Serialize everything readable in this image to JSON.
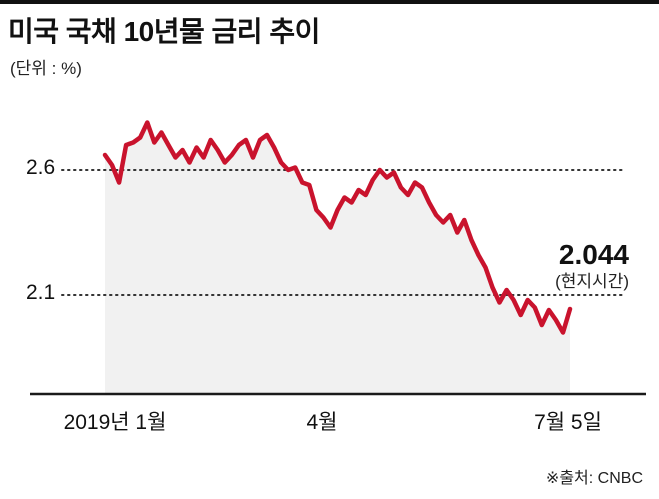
{
  "header": {
    "title": "미국 국채 10년물 금리 추이",
    "unit": "(단위 : %)"
  },
  "chart_data": {
    "type": "area",
    "title": "미국 국채 10년물 금리 추이",
    "ylabel": "%",
    "x_tick_labels": [
      "2019년 1월",
      "4월",
      "7월 5일"
    ],
    "y_ticks": [
      2.6,
      2.1
    ],
    "y_tick_labels": [
      "2.6",
      "2.1"
    ],
    "ylim": [
      1.75,
      2.85
    ],
    "x_range_note": "2019-01 to 2019-07-05, evenly spaced observations",
    "values": [
      2.66,
      2.62,
      2.55,
      2.7,
      2.71,
      2.73,
      2.79,
      2.71,
      2.75,
      2.7,
      2.65,
      2.68,
      2.63,
      2.69,
      2.65,
      2.72,
      2.68,
      2.63,
      2.66,
      2.7,
      2.72,
      2.65,
      2.72,
      2.74,
      2.69,
      2.63,
      2.6,
      2.61,
      2.55,
      2.54,
      2.44,
      2.41,
      2.37,
      2.44,
      2.49,
      2.47,
      2.52,
      2.5,
      2.56,
      2.6,
      2.57,
      2.59,
      2.53,
      2.5,
      2.55,
      2.53,
      2.47,
      2.42,
      2.39,
      2.42,
      2.35,
      2.4,
      2.32,
      2.26,
      2.21,
      2.13,
      2.07,
      2.12,
      2.08,
      2.02,
      2.08,
      2.05,
      1.98,
      2.04,
      2.0,
      1.95,
      2.044
    ],
    "last_value": 2.044,
    "grid": "dotted horizontal gridlines at y ticks",
    "legend": "none",
    "line_color": "#c9132d",
    "fill_color": "#f1f1f1",
    "grid_color": "#333333",
    "axis_color": "#1a1a1a"
  },
  "annotation": {
    "value": "2.044",
    "note": "(현지시간)"
  },
  "footer": {
    "source": "※출처: CNBC"
  }
}
